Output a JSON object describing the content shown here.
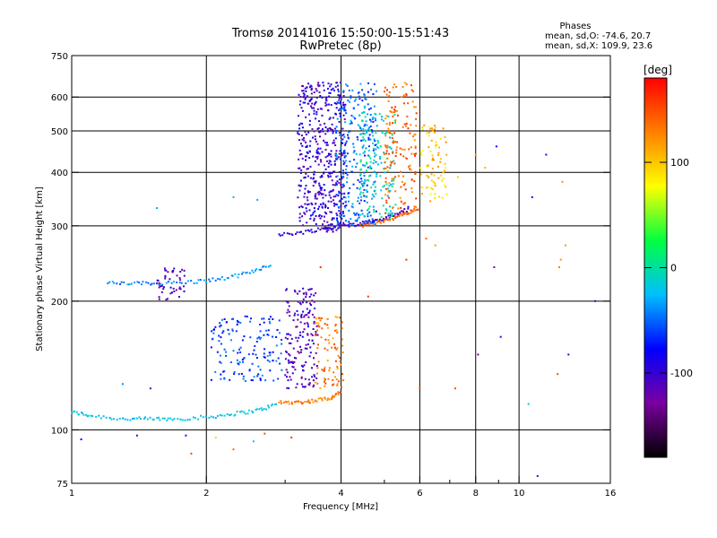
{
  "chart_data": {
    "type": "scatter",
    "title": "Tromsø 20141016 15:50:00-15:51:43",
    "subtitle": "RwPretec (8p)",
    "xlabel": "Frequency [MHz]",
    "ylabel": "Stationary phase Virtual Height [km]",
    "xscale": "log",
    "yscale": "log",
    "xlim": [
      1,
      16
    ],
    "ylim": [
      75,
      750
    ],
    "x_ticks": [
      1,
      2,
      4,
      6,
      8,
      10,
      16
    ],
    "x_minor_ticks": [
      3,
      5,
      7,
      9
    ],
    "y_ticks": [
      75,
      100,
      200,
      300,
      400,
      500,
      600,
      750
    ],
    "grid": true,
    "phase_stats": {
      "header": "Phases",
      "o_mode": "mean, sd,O: -74.6, 20.7",
      "x_mode": "mean, sd,X: 109.9, 23.6"
    },
    "colorbar": {
      "label": "[deg]",
      "range": [
        -180,
        180
      ],
      "ticks": [
        100,
        0,
        -100
      ],
      "colormap": "rainbow",
      "colors": [
        "#000000",
        "#7a00a0",
        "#0000ff",
        "#00bfff",
        "#00ff40",
        "#ffff00",
        "#ff8000",
        "#ff0000"
      ]
    },
    "traces": [
      {
        "x": [
          1.0,
          1.1,
          1.3,
          1.5,
          1.7,
          2.0,
          2.3,
          2.6,
          2.9
        ],
        "y": [
          110,
          108,
          106,
          106,
          106,
          107,
          109,
          111,
          115
        ],
        "phase": -20
      },
      {
        "x": [
          2.9,
          3.2,
          3.5,
          3.8,
          4.0
        ],
        "y": [
          116,
          116,
          117,
          119,
          123
        ],
        "phase": 130
      },
      {
        "x": [
          1.2,
          1.4,
          1.6,
          1.9,
          2.2,
          2.5,
          2.8
        ],
        "y": [
          220,
          220,
          220,
          222,
          226,
          233,
          245
        ],
        "phase": -40
      },
      {
        "x": [
          2.9,
          3.3,
          3.7,
          4.1,
          4.5,
          4.9,
          5.3,
          5.7
        ],
        "y": [
          285,
          290,
          296,
          300,
          305,
          310,
          318,
          330
        ],
        "phase": -100
      },
      {
        "x": [
          4.4,
          4.8,
          5.2,
          5.6,
          6.0
        ],
        "y": [
          300,
          305,
          312,
          320,
          330
        ],
        "phase": 140
      }
    ],
    "clusters": [
      {
        "x": [
          1.55,
          1.8
        ],
        "y": [
          200,
          240
        ],
        "n": 45,
        "phase": -110
      },
      {
        "x": [
          2.05,
          2.95
        ],
        "y": [
          130,
          185
        ],
        "n": 150,
        "phase": -60
      },
      {
        "x": [
          3.0,
          3.55
        ],
        "y": [
          125,
          215
        ],
        "n": 170,
        "phase": -110
      },
      {
        "x": [
          3.5,
          4.05
        ],
        "y": [
          125,
          185
        ],
        "n": 90,
        "phase": 130
      },
      {
        "x": [
          3.2,
          4.1
        ],
        "y": [
          290,
          650
        ],
        "n": 480,
        "phase": -100
      },
      {
        "x": [
          3.9,
          4.8
        ],
        "y": [
          300,
          650
        ],
        "n": 260,
        "phase": -50
      },
      {
        "x": [
          4.4,
          5.3
        ],
        "y": [
          310,
          560
        ],
        "n": 150,
        "phase": -10
      },
      {
        "x": [
          5.0,
          5.9
        ],
        "y": [
          320,
          650
        ],
        "n": 160,
        "phase": 140
      },
      {
        "x": [
          6.0,
          6.9
        ],
        "y": [
          340,
          520
        ],
        "n": 80,
        "phase": 100
      }
    ],
    "scattered_points": [
      {
        "x": 1.05,
        "y": 95,
        "phase": -80
      },
      {
        "x": 1.4,
        "y": 97,
        "phase": -100
      },
      {
        "x": 1.8,
        "y": 97,
        "phase": -100
      },
      {
        "x": 1.85,
        "y": 88,
        "phase": 150
      },
      {
        "x": 2.1,
        "y": 96,
        "phase": 60
      },
      {
        "x": 2.3,
        "y": 90,
        "phase": 140
      },
      {
        "x": 2.55,
        "y": 94,
        "phase": -20
      },
      {
        "x": 3.1,
        "y": 96,
        "phase": 160
      },
      {
        "x": 2.7,
        "y": 98,
        "phase": 150
      },
      {
        "x": 1.3,
        "y": 128,
        "phase": -40
      },
      {
        "x": 1.5,
        "y": 125,
        "phase": -110
      },
      {
        "x": 1.55,
        "y": 330,
        "phase": -30
      },
      {
        "x": 2.3,
        "y": 350,
        "phase": -30
      },
      {
        "x": 2.6,
        "y": 345,
        "phase": -30
      },
      {
        "x": 3.6,
        "y": 240,
        "phase": 160
      },
      {
        "x": 4.6,
        "y": 205,
        "phase": 160
      },
      {
        "x": 5.6,
        "y": 250,
        "phase": 160
      },
      {
        "x": 6.2,
        "y": 280,
        "phase": 140
      },
      {
        "x": 6.5,
        "y": 270,
        "phase": 120
      },
      {
        "x": 7.3,
        "y": 390,
        "phase": 100
      },
      {
        "x": 8.0,
        "y": 440,
        "phase": 120
      },
      {
        "x": 8.4,
        "y": 410,
        "phase": 110
      },
      {
        "x": 8.9,
        "y": 460,
        "phase": -80
      },
      {
        "x": 8.8,
        "y": 240,
        "phase": -130
      },
      {
        "x": 9.1,
        "y": 165,
        "phase": -100
      },
      {
        "x": 7.2,
        "y": 125,
        "phase": 150
      },
      {
        "x": 6.0,
        "y": 125,
        "phase": 150
      },
      {
        "x": 10.5,
        "y": 115,
        "phase": -10
      },
      {
        "x": 10.7,
        "y": 350,
        "phase": -100
      },
      {
        "x": 12.5,
        "y": 380,
        "phase": 120
      },
      {
        "x": 12.7,
        "y": 270,
        "phase": 120
      },
      {
        "x": 12.4,
        "y": 250,
        "phase": 120
      },
      {
        "x": 12.3,
        "y": 240,
        "phase": 130
      },
      {
        "x": 12.9,
        "y": 150,
        "phase": -100
      },
      {
        "x": 12.2,
        "y": 135,
        "phase": 150
      },
      {
        "x": 14.8,
        "y": 200,
        "phase": -100
      },
      {
        "x": 11.5,
        "y": 440,
        "phase": -100
      },
      {
        "x": 11.0,
        "y": 78,
        "phase": -100
      },
      {
        "x": 8.1,
        "y": 150,
        "phase": -130
      }
    ]
  }
}
